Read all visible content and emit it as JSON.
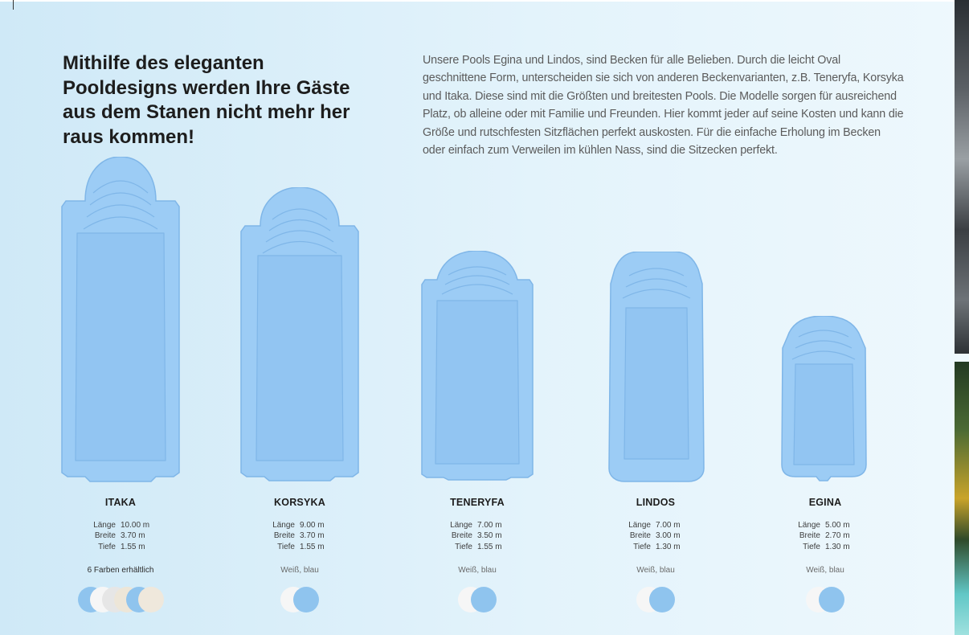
{
  "headline": "Mithilfe des eleganten Pooldesigns werden Ihre Gäste aus dem Stanen nicht mehr her raus kommen!",
  "intro": "Unsere Pools Egina und Lindos, sind Becken für alle Belieben. Durch die leicht Oval geschnittene Form, unterscheiden sie sich von anderen Beckenvarianten, z.B. Teneryfa, Korsyka und Itaka. Diese sind mit die Größten und breitesten Pools. Die Modelle sorgen für ausreichend Platz, ob alleine oder mit Familie und Freunden. Hier kommt jeder auf seine Kosten und kann die Größe und rutschfesten Sitzflächen perfekt auskosten. Für die einfache Erholung im Becken oder einfach zum Verweilen im kühlen Nass, sind die Sitzecken perfekt.",
  "colors": {
    "white": "#f6f6f6",
    "blue": "#8fc4ee",
    "sand": "#ede6d8",
    "pool_blue": "#9cccf5",
    "pool_edge": "#7fb6e8"
  },
  "models": [
    {
      "name": "ITAKA",
      "specs": [
        {
          "label": "Länge",
          "value": "10.00 m"
        },
        {
          "label": "Breite",
          "value": "3.70 m"
        },
        {
          "label": "Tiefe",
          "value": "1.55 m"
        }
      ],
      "colors_note": "6 Farben erhältlich",
      "swatches": [
        "#8fc4ee",
        "#f6f6f6",
        "#e6e6e6",
        "#ede6d8",
        "#8fc4ee",
        "#efe8dc"
      ]
    },
    {
      "name": "KORSYKA",
      "specs": [
        {
          "label": "Länge",
          "value": "9.00 m"
        },
        {
          "label": "Breite",
          "value": "3.70 m"
        },
        {
          "label": "Tiefe",
          "value": "1.55 m"
        }
      ],
      "colors_note": "Weiß, blau",
      "swatches": [
        "#f6f6f6",
        "#8fc4ee"
      ]
    },
    {
      "name": "TENERYFA",
      "specs": [
        {
          "label": "Länge",
          "value": "7.00 m"
        },
        {
          "label": "Breite",
          "value": "3.50 m"
        },
        {
          "label": "Tiefe",
          "value": "1.55 m"
        }
      ],
      "colors_note": "Weiß, blau",
      "swatches": [
        "#f6f6f6",
        "#8fc4ee"
      ]
    },
    {
      "name": "LINDOS",
      "specs": [
        {
          "label": "Länge",
          "value": "7.00 m"
        },
        {
          "label": "Breite",
          "value": "3.00 m"
        },
        {
          "label": "Tiefe",
          "value": "1.30 m"
        }
      ],
      "colors_note": "Weiß, blau",
      "swatches": [
        "#f6f6f6",
        "#8fc4ee"
      ]
    },
    {
      "name": "EGINA",
      "specs": [
        {
          "label": "Länge",
          "value": "5.00 m"
        },
        {
          "label": "Breite",
          "value": "2.70 m"
        },
        {
          "label": "Tiefe",
          "value": "1.30 m"
        }
      ],
      "colors_note": "Weiß, blau",
      "swatches": [
        "#f6f6f6",
        "#8fc4ee"
      ]
    }
  ]
}
